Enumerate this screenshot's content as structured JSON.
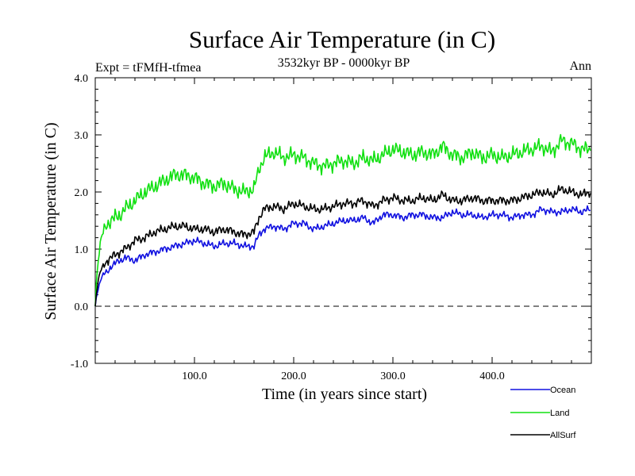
{
  "chart_data": {
    "type": "line",
    "title": "Surface Air Temperature (in C)",
    "subtitle": "3532kyr BP - 0000kyr BP",
    "left_label": "Expt = tFMfH-tfmea",
    "right_label": "Ann",
    "xlabel": "Time (in years since start)",
    "ylabel": "Surface Air Temperature (in C)",
    "xlim": [
      0,
      500
    ],
    "ylim": [
      -1.0,
      4.0
    ],
    "x_ticks": [
      100,
      200,
      300,
      400
    ],
    "x_tick_labels": [
      "100.0",
      "200.0",
      "300.0",
      "400.0"
    ],
    "y_ticks": [
      -1,
      0,
      1,
      2,
      3,
      4
    ],
    "y_tick_labels": [
      "-1.0",
      "0.0",
      "1.0",
      "2.0",
      "3.0",
      "4.0"
    ],
    "reference_line": {
      "y": 0.0,
      "style": "dashed"
    },
    "x": [
      0,
      1,
      3,
      5,
      8,
      12,
      16,
      20,
      25,
      30,
      40,
      50,
      60,
      70,
      80,
      90,
      100,
      110,
      120,
      130,
      140,
      150,
      160,
      165,
      170,
      180,
      190,
      200,
      210,
      220,
      230,
      240,
      250,
      260,
      270,
      280,
      290,
      300,
      310,
      320,
      330,
      340,
      350,
      360,
      370,
      380,
      390,
      400,
      410,
      420,
      430,
      440,
      450,
      460,
      470,
      480,
      490,
      499
    ],
    "series": [
      {
        "name": "Ocean",
        "color": "#1010e0",
        "values": [
          0.0,
          0.15,
          0.3,
          0.45,
          0.55,
          0.6,
          0.7,
          0.75,
          0.8,
          0.85,
          0.8,
          0.9,
          0.95,
          1.0,
          1.05,
          1.1,
          1.15,
          1.1,
          1.05,
          1.1,
          1.1,
          1.05,
          1.05,
          1.25,
          1.35,
          1.4,
          1.35,
          1.45,
          1.45,
          1.35,
          1.4,
          1.45,
          1.5,
          1.5,
          1.55,
          1.45,
          1.6,
          1.6,
          1.55,
          1.6,
          1.6,
          1.55,
          1.55,
          1.65,
          1.6,
          1.6,
          1.55,
          1.6,
          1.6,
          1.55,
          1.6,
          1.6,
          1.7,
          1.65,
          1.65,
          1.7,
          1.65,
          1.7
        ]
      },
      {
        "name": "Land",
        "color": "#10e010",
        "values": [
          0.0,
          0.4,
          0.8,
          1.1,
          1.3,
          1.45,
          1.5,
          1.55,
          1.6,
          1.7,
          1.85,
          2.0,
          2.1,
          2.2,
          2.3,
          2.3,
          2.25,
          2.15,
          2.1,
          2.15,
          2.05,
          2.0,
          2.05,
          2.4,
          2.6,
          2.7,
          2.6,
          2.65,
          2.6,
          2.5,
          2.45,
          2.5,
          2.55,
          2.5,
          2.6,
          2.55,
          2.65,
          2.75,
          2.7,
          2.65,
          2.7,
          2.65,
          2.8,
          2.65,
          2.6,
          2.7,
          2.6,
          2.65,
          2.6,
          2.65,
          2.7,
          2.75,
          2.8,
          2.7,
          2.9,
          2.85,
          2.75,
          2.75
        ]
      },
      {
        "name": "AllSurf",
        "color": "#000000",
        "values": [
          0.0,
          0.2,
          0.45,
          0.6,
          0.7,
          0.8,
          0.85,
          0.9,
          0.95,
          1.0,
          1.15,
          1.2,
          1.3,
          1.35,
          1.4,
          1.4,
          1.35,
          1.35,
          1.3,
          1.35,
          1.3,
          1.25,
          1.3,
          1.55,
          1.7,
          1.75,
          1.7,
          1.8,
          1.75,
          1.7,
          1.7,
          1.75,
          1.8,
          1.8,
          1.85,
          1.75,
          1.85,
          1.9,
          1.85,
          1.85,
          1.9,
          1.85,
          1.95,
          1.85,
          1.85,
          1.9,
          1.85,
          1.85,
          1.85,
          1.85,
          1.9,
          1.95,
          2.0,
          1.95,
          2.05,
          2.0,
          1.95,
          2.0
        ]
      }
    ],
    "legend_position": "bottom-right"
  }
}
